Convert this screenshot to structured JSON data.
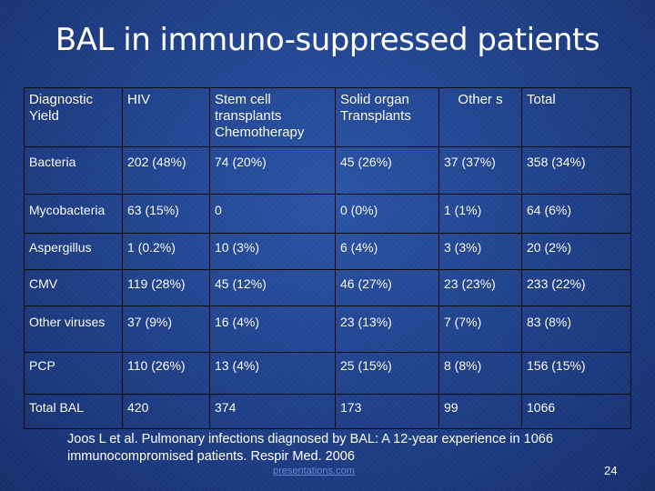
{
  "title": "BAL in immuno-suppressed patients",
  "table": {
    "headers": [
      "Diagnostic Yield",
      "HIV",
      "Stem cell transplants Chemotherapy",
      "Solid organ Transplants",
      "Other s",
      "Total"
    ],
    "rows": [
      [
        "Bacteria",
        "202 (48%)",
        "74 (20%)",
        "45 (26%)",
        "37 (37%)",
        "358 (34%)"
      ],
      [
        "Mycobacteria",
        "63 (15%)",
        "0",
        "0 (0%)",
        "1 (1%)",
        "64 (6%)"
      ],
      [
        "Aspergillus",
        "1 (0.2%)",
        "10 (3%)",
        "6 (4%)",
        "3 (3%)",
        "20 (2%)"
      ],
      [
        "CMV",
        "119 (28%)",
        "45 (12%)",
        "46 (27%)",
        "23 (23%)",
        "233 (22%)"
      ],
      [
        "Other viruses",
        "37 (9%)",
        "16 (4%)",
        "23 (13%)",
        "7 (7%)",
        "83 (8%)"
      ],
      [
        "PCP",
        "110 (26%)",
        "13 (4%)",
        "25 (15%)",
        "8 (8%)",
        "156 (15%)"
      ],
      [
        "Total BAL",
        "420",
        "374",
        "173",
        "99",
        "1066"
      ]
    ]
  },
  "reference": "Joos L et al. Pulmonary infections diagnosed by BAL: A 12-year experience in 1066 immunocompromised patients. Respir Med. 2006",
  "link": "presentations.com",
  "page_number": "24"
}
